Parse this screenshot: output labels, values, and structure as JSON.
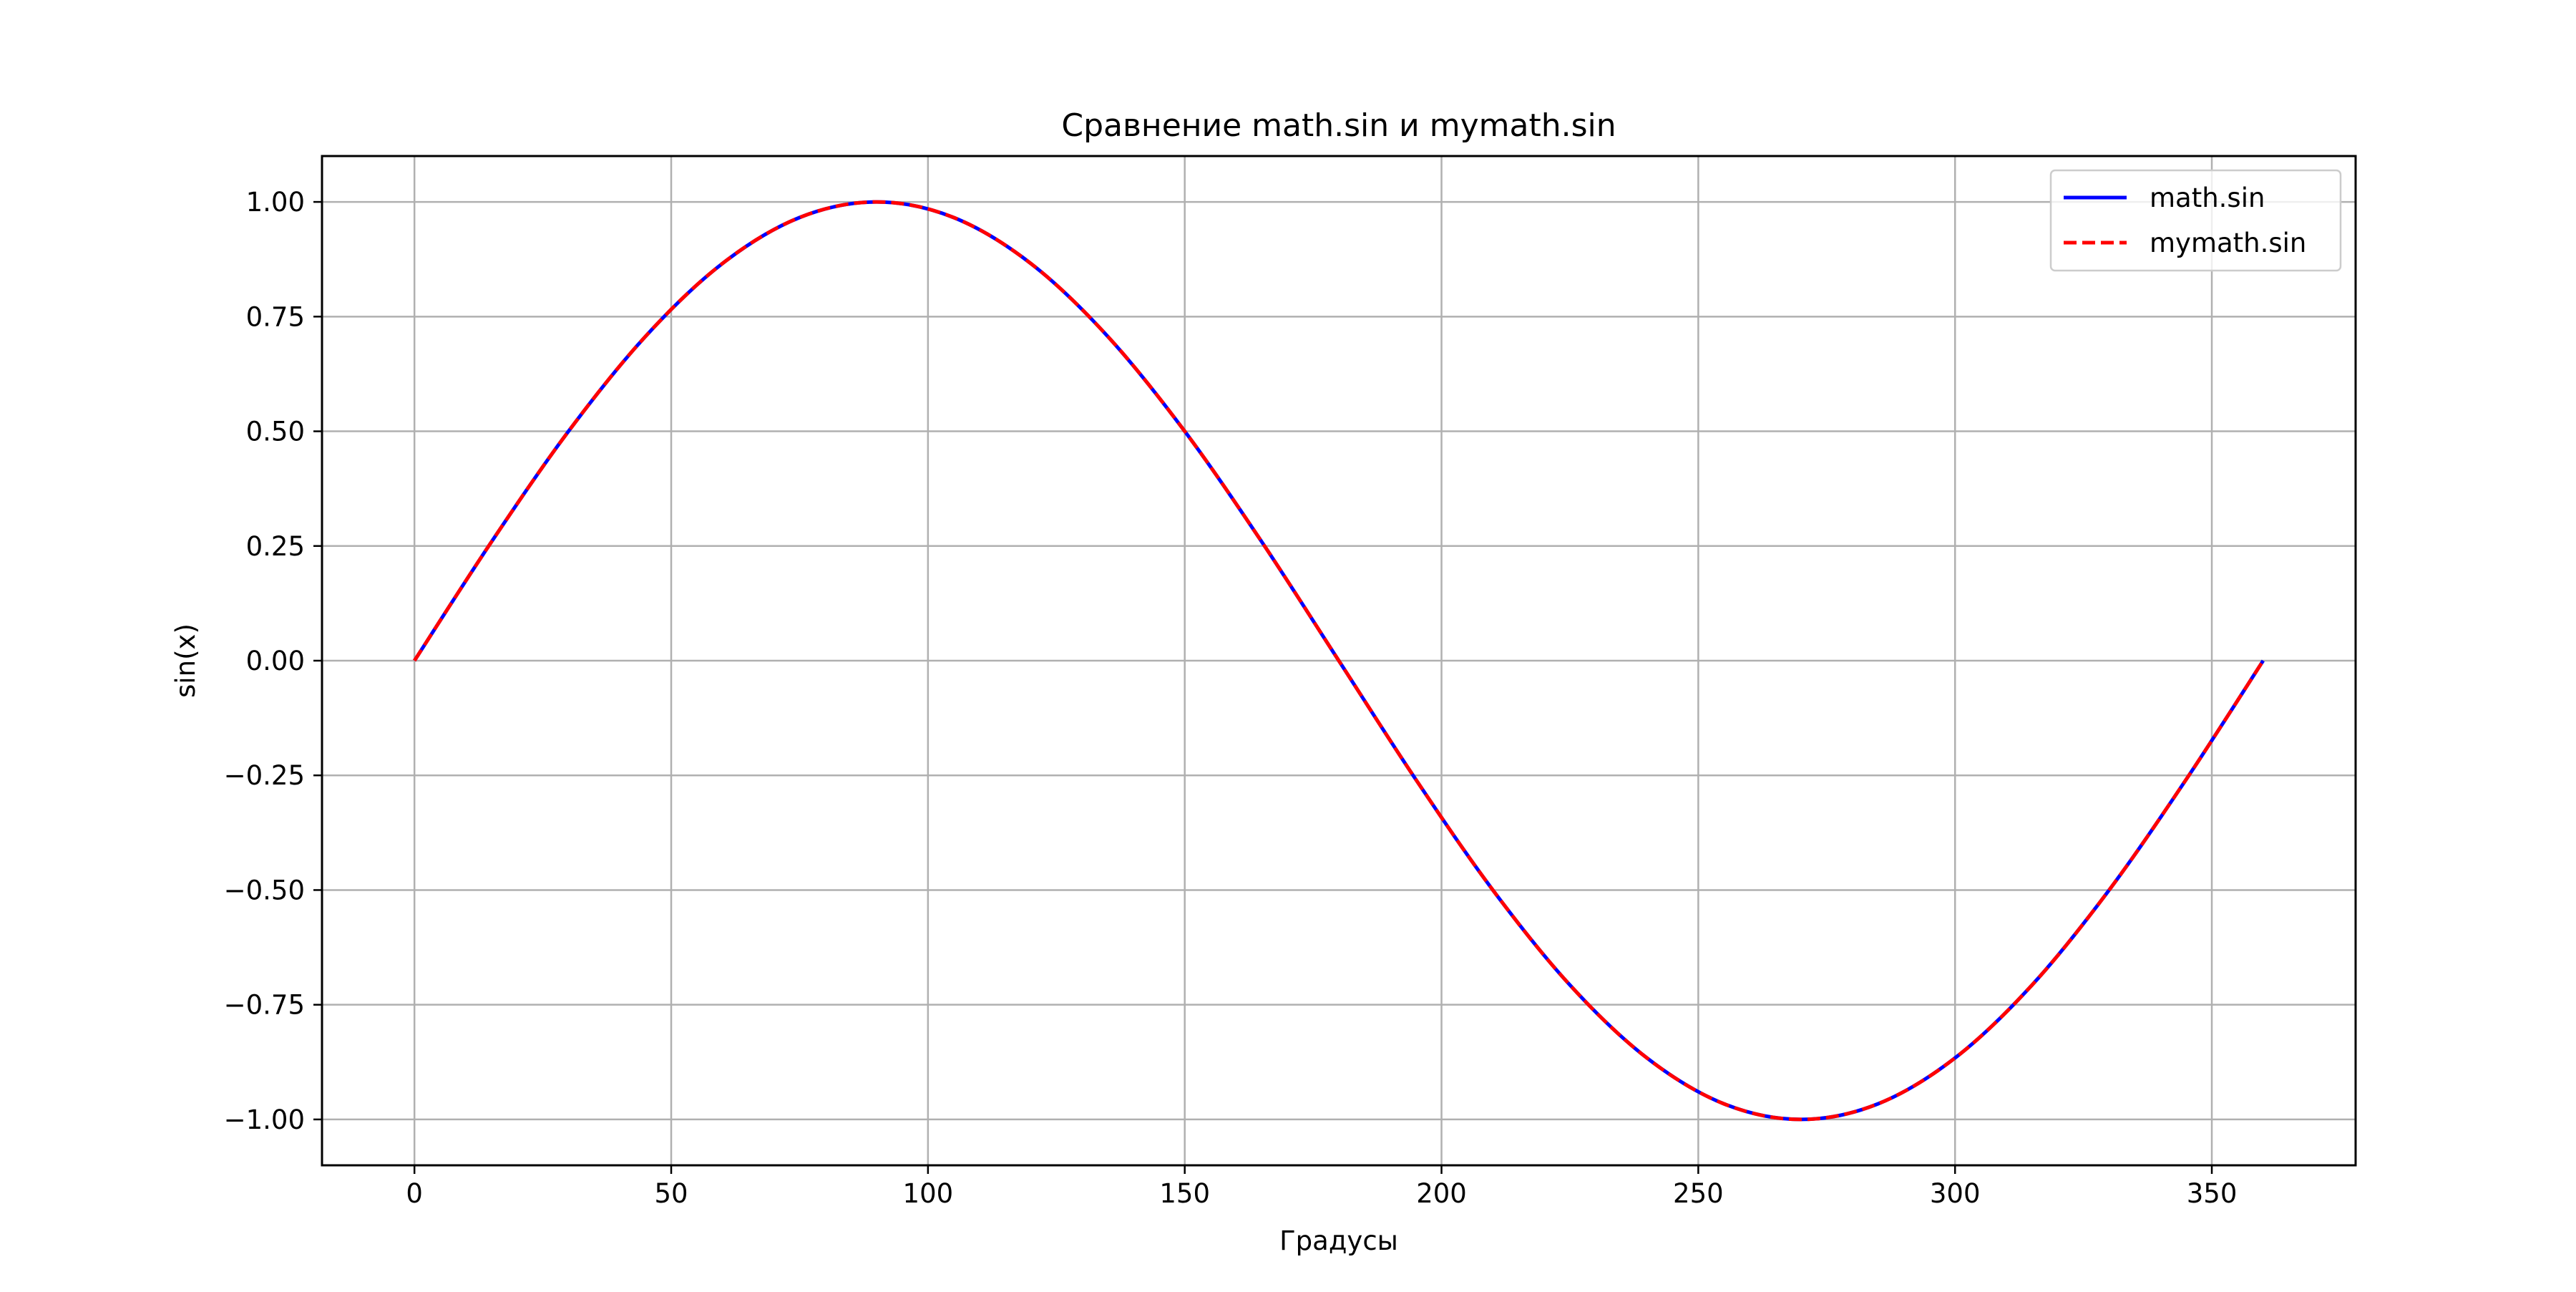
{
  "chart_data": {
    "type": "line",
    "title": "Сравнение math.sin и mymath.sin",
    "xlabel": "Градусы",
    "ylabel": "sin(x)",
    "xlim": [
      -18,
      378
    ],
    "ylim": [
      -1.1,
      1.1
    ],
    "xticks": [
      0,
      50,
      100,
      150,
      200,
      250,
      300,
      350
    ],
    "xtick_labels": [
      "0",
      "50",
      "100",
      "150",
      "200",
      "250",
      "300",
      "350"
    ],
    "yticks": [
      1.0,
      0.75,
      0.5,
      0.25,
      0.0,
      -0.25,
      -0.5,
      -0.75,
      -1.0
    ],
    "ytick_labels": [
      "1.00",
      "0.75",
      "0.50",
      "0.25",
      "0.00",
      "−0.25",
      "−0.50",
      "−0.75",
      "−1.00"
    ],
    "grid": true,
    "legend_position": "top-right",
    "series": [
      {
        "name": "math.sin",
        "color": "#0000ff",
        "style": "solid",
        "x": [
          0,
          15,
          30,
          45,
          60,
          75,
          90,
          105,
          120,
          135,
          150,
          165,
          180,
          195,
          210,
          225,
          240,
          255,
          270,
          285,
          300,
          315,
          330,
          345,
          360
        ],
        "y": [
          0.0,
          0.259,
          0.5,
          0.707,
          0.866,
          0.966,
          1.0,
          0.966,
          0.866,
          0.707,
          0.5,
          0.259,
          0.0,
          -0.259,
          -0.5,
          -0.707,
          -0.866,
          -0.966,
          -1.0,
          -0.966,
          -0.866,
          -0.707,
          -0.5,
          -0.259,
          0.0
        ]
      },
      {
        "name": "mymath.sin",
        "color": "#ff0000",
        "style": "dashed",
        "x": [
          0,
          15,
          30,
          45,
          60,
          75,
          90,
          105,
          120,
          135,
          150,
          165,
          180,
          195,
          210,
          225,
          240,
          255,
          270,
          285,
          300,
          315,
          330,
          345,
          360
        ],
        "y": [
          0.0,
          0.259,
          0.5,
          0.707,
          0.866,
          0.966,
          1.0,
          0.966,
          0.866,
          0.707,
          0.5,
          0.259,
          0.0,
          -0.259,
          -0.5,
          -0.707,
          -0.866,
          -0.966,
          -1.0,
          -0.966,
          -0.866,
          -0.707,
          -0.5,
          -0.259,
          0.0
        ]
      }
    ]
  }
}
